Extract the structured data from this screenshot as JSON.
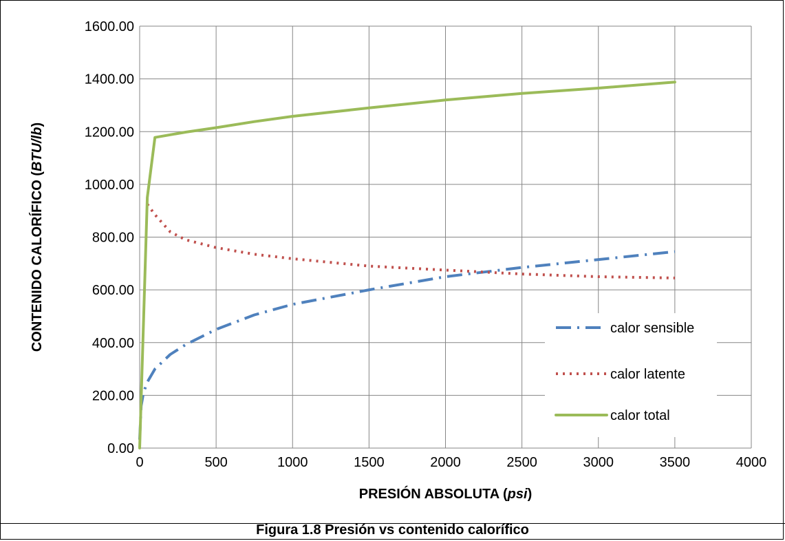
{
  "caption": "Figura 1.8 Presión vs contenido calorífico",
  "chart_data": {
    "type": "line",
    "xlabel": "PRESIÓN ABSOLUTA",
    "xlabel_unit": "psi",
    "ylabel": "CONTENIDO CALORÍFICO",
    "ylabel_unit": "BTU/lb",
    "xlim": [
      0,
      4000
    ],
    "ylim": [
      0,
      1600
    ],
    "x_ticks": [
      "0",
      "500",
      "1000",
      "1500",
      "2000",
      "2500",
      "3000",
      "3500",
      "4000"
    ],
    "y_ticks": [
      "0.00",
      "200.00",
      "400.00",
      "600.00",
      "800.00",
      "1000.00",
      "1200.00",
      "1400.00",
      "1600.00"
    ],
    "grid": true,
    "legend_position": "right",
    "series": [
      {
        "name": "calor sensible",
        "color": "#4F81BD",
        "style": "dash-dot",
        "x": [
          0,
          10,
          25,
          50,
          100,
          200,
          300,
          500,
          750,
          1000,
          1500,
          2000,
          2500,
          3000,
          3500
        ],
        "y": [
          32,
          160,
          210,
          250,
          300,
          355,
          392,
          450,
          505,
          545,
          600,
          650,
          685,
          715,
          745
        ]
      },
      {
        "name": "calor latente",
        "color": "#C0504D",
        "style": "dotted",
        "x": [
          50,
          100,
          200,
          300,
          500,
          750,
          1000,
          1500,
          2000,
          2500,
          3000,
          3500
        ],
        "y": [
          925,
          885,
          820,
          790,
          760,
          735,
          718,
          690,
          675,
          660,
          650,
          645
        ]
      },
      {
        "name": "calor total",
        "color": "#9BBB59",
        "style": "solid",
        "x": [
          0,
          50,
          100,
          200,
          300,
          500,
          750,
          1000,
          1500,
          2000,
          2500,
          3000,
          3500
        ],
        "y": [
          0,
          950,
          1178,
          1188,
          1198,
          1215,
          1238,
          1258,
          1290,
          1320,
          1345,
          1365,
          1388
        ]
      }
    ]
  }
}
